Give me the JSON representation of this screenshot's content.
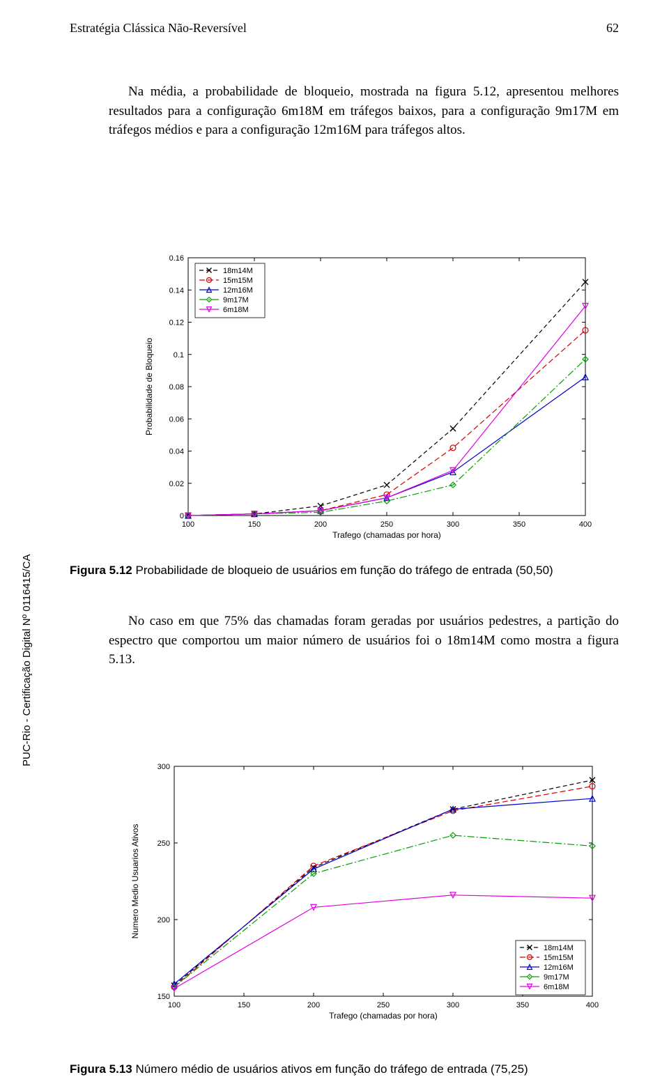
{
  "header": {
    "title": "Estratégia Clássica Não-Reversível",
    "page_number": "62"
  },
  "sidetext": "PUC-Rio - Certificação Digital Nº 0116415/CA",
  "para1": "Na média, a probabilidade de bloqueio, mostrada na figura 5.12, apresentou melhores resultados para a configuração 6m18M em tráfegos baixos, para a configuração 9m17M em tráfegos médios e para a configuração 12m16M para tráfegos altos.",
  "para2": "No caso em que 75% das chamadas foram geradas por usuários pedestres, a partição do espectro que comportou um maior número de usuários foi o 18m14M como mostra a figura 5.13.",
  "figcap1_bold": "Figura 5.12",
  "figcap1_rest": " Probabilidade de bloqueio de usuários em função do tráfego de entrada (50,50)",
  "figcap2_bold": "Figura 5.13",
  "figcap2_rest": " Número médio de usuários ativos em função do tráfego de entrada (75,25)",
  "chart1": {
    "type": "line",
    "x": [
      100,
      150,
      200,
      250,
      300,
      400
    ],
    "xlim": [
      100,
      400
    ],
    "ylim": [
      0,
      0.16
    ],
    "yticks": [
      0,
      0.02,
      0.04,
      0.06,
      0.08,
      0.1,
      0.12,
      0.14,
      0.16
    ],
    "xticks": [
      100,
      150,
      200,
      250,
      300,
      350,
      400
    ],
    "ylabel": "Probabilidade de Bloqueio",
    "xlabel": "Trafego (chamadas por hora)",
    "legend_pos": "top-left",
    "series": [
      {
        "name": "18m14M",
        "marker": "x",
        "color": "#000000",
        "dash": "6,4",
        "y": [
          0.0,
          0.001,
          0.006,
          0.019,
          0.054,
          0.145
        ]
      },
      {
        "name": "15m15M",
        "marker": "circle",
        "color": "#d40000",
        "dash": "8,4",
        "y": [
          0.0,
          0.001,
          0.003,
          0.013,
          0.042,
          0.115
        ]
      },
      {
        "name": "12m16M",
        "marker": "triangle",
        "color": "#0000d4",
        "dash": "",
        "y": [
          0.0,
          0.001,
          0.003,
          0.011,
          0.027,
          0.086
        ]
      },
      {
        "name": "9m17M",
        "marker": "diamond",
        "color": "#00a000",
        "dash": "10,3,2,3",
        "y": [
          0.0,
          0.001,
          0.002,
          0.009,
          0.019,
          0.097
        ]
      },
      {
        "name": "6m18M",
        "marker": "triangle-down",
        "color": "#e000e0",
        "dash": "",
        "y": [
          0.0,
          0.001,
          0.003,
          0.011,
          0.028,
          0.13
        ]
      }
    ]
  },
  "chart2": {
    "type": "line",
    "x": [
      100,
      200,
      300,
      400
    ],
    "xlim": [
      100,
      400
    ],
    "ylim": [
      150,
      300
    ],
    "yticks": [
      150,
      200,
      250,
      300
    ],
    "xticks": [
      100,
      150,
      200,
      250,
      300,
      350,
      400
    ],
    "ylabel": "Numero Medio Usuarios Ativos",
    "xlabel": "Trafego (chamadas por hora)",
    "legend_pos": "bottom-right",
    "series": [
      {
        "name": "18m14M",
        "marker": "x",
        "color": "#000000",
        "dash": "6,4",
        "y": [
          157,
          234,
          272,
          291
        ]
      },
      {
        "name": "15m15M",
        "marker": "circle",
        "color": "#d40000",
        "dash": "8,4",
        "y": [
          156,
          235,
          271,
          287
        ]
      },
      {
        "name": "12m16M",
        "marker": "triangle",
        "color": "#0000d4",
        "dash": "",
        "y": [
          158,
          233,
          272,
          279
        ]
      },
      {
        "name": "9m17M",
        "marker": "diamond",
        "color": "#00a000",
        "dash": "10,3,2,3",
        "y": [
          156,
          230,
          255,
          248
        ]
      },
      {
        "name": "6m18M",
        "marker": "triangle-down",
        "color": "#e000e0",
        "dash": "",
        "y": [
          155,
          208,
          216,
          214
        ]
      }
    ]
  }
}
